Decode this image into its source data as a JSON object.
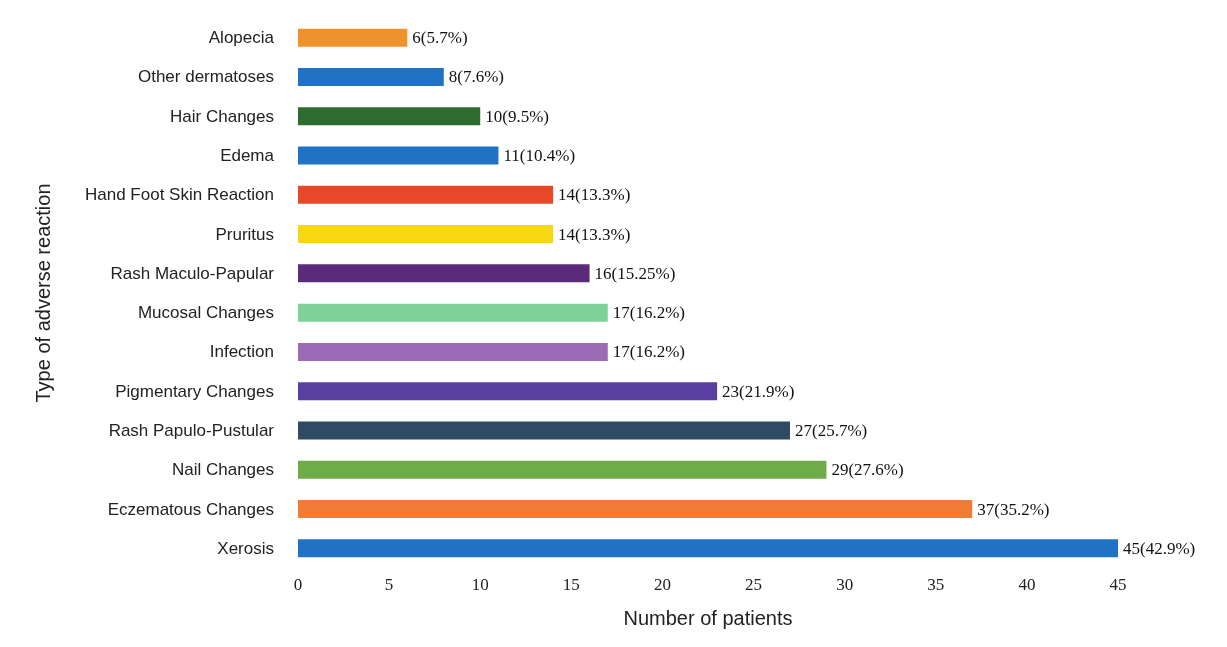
{
  "chart_data": {
    "type": "bar",
    "orientation": "horizontal",
    "xlabel": "Number of patients",
    "ylabel": "Type of adverse reaction",
    "categories": [
      "Alopecia",
      "Other dermatoses",
      "Hair Changes",
      "Edema",
      "Hand Foot Skin Reaction",
      "Pruritus",
      "Rash Maculo-Papular",
      "Mucosal Changes",
      "Infection",
      "Pigmentary Changes",
      "Rash Papulo-Pustular",
      "Nail Changes",
      "Eczematous Changes",
      "Xerosis"
    ],
    "values": [
      6,
      8,
      10,
      11,
      14,
      14,
      16,
      17,
      17,
      23,
      27,
      29,
      37,
      45
    ],
    "value_labels": [
      "6(5.7%)",
      "8(7.6%)",
      "10(9.5%)",
      "11(10.4%)",
      "14(13.3%)",
      "14(13.3%)",
      "16(15.25%)",
      "17(16.2%)",
      "17(16.2%)",
      "23(21.9%)",
      "27(25.7%)",
      "29(27.6%)",
      "37(35.2%)",
      "45(42.9%)"
    ],
    "colors": [
      "#f0922b",
      "#1f72c4",
      "#2e6b2e",
      "#1f72c4",
      "#e8482a",
      "#f5d813",
      "#5b2a7a",
      "#7fd19a",
      "#9b6bb5",
      "#5b3fa0",
      "#2f4a63",
      "#6fab47",
      "#f27b35",
      "#1f72c4"
    ],
    "xlim": [
      0,
      45
    ],
    "xticks": [
      0,
      5,
      10,
      15,
      20,
      25,
      30,
      35,
      40,
      45
    ],
    "grid": false
  }
}
